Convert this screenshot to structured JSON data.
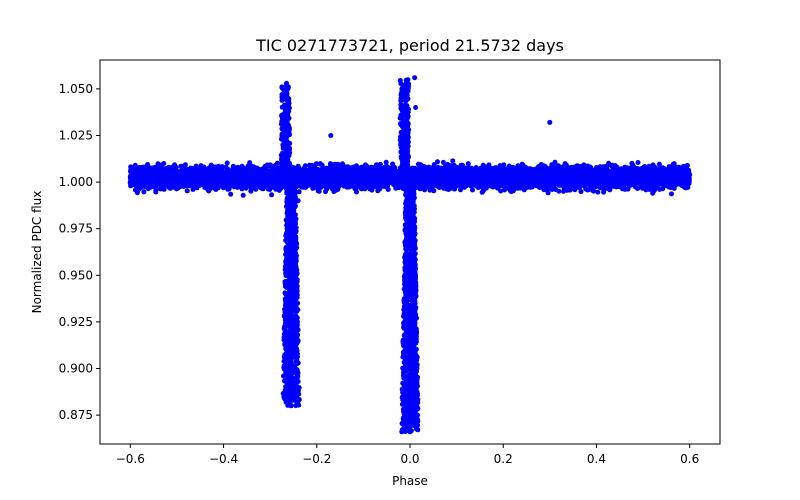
{
  "chart_data": {
    "type": "scatter",
    "title": "TIC 0271773721, period 21.5732 days",
    "xlabel": "Phase",
    "ylabel": "Normalized PDC flux",
    "xlim": [
      -0.665,
      0.665
    ],
    "ylim": [
      0.8595,
      1.0655
    ],
    "x_ticks": [
      -0.6,
      -0.4,
      -0.2,
      0.0,
      0.2,
      0.4,
      0.6
    ],
    "x_tick_labels": [
      "−0.6",
      "−0.4",
      "−0.2",
      "0.0",
      "0.2",
      "0.4",
      "0.6"
    ],
    "y_ticks": [
      0.875,
      0.9,
      0.925,
      0.95,
      0.975,
      1.0,
      1.025,
      1.05
    ],
    "y_tick_labels": [
      "0.875",
      "0.900",
      "0.925",
      "0.950",
      "0.975",
      "1.000",
      "1.025",
      "1.050"
    ],
    "grid": false,
    "color": "#0000ff",
    "series": [
      {
        "name": "PDC flux",
        "description_of_features": {
          "baseline_phase_range": [
            -0.6,
            0.6
          ],
          "baseline_flux_range": [
            0.991,
            1.014
          ],
          "primary_eclipse": {
            "phase": 0.0,
            "min_flux": 0.866,
            "max_flux": 1.056
          },
          "secondary_eclipse": {
            "phase": -0.255,
            "min_flux": 0.88,
            "max_flux": 1.053
          }
        },
        "points": [
          [
            -0.6,
            1.003
          ],
          [
            -0.55,
            0.998
          ],
          [
            -0.5,
            1.006
          ],
          [
            -0.45,
            1.001
          ],
          [
            -0.4,
            0.997
          ],
          [
            -0.35,
            1.004
          ],
          [
            -0.3,
            1.002
          ],
          [
            -0.27,
            1.0
          ],
          [
            -0.265,
            1.053
          ],
          [
            -0.262,
            1.04
          ],
          [
            -0.26,
            0.93
          ],
          [
            -0.258,
            0.9
          ],
          [
            -0.255,
            0.88
          ],
          [
            -0.252,
            0.895
          ],
          [
            -0.25,
            0.935
          ],
          [
            -0.245,
            0.97
          ],
          [
            -0.24,
            0.99
          ],
          [
            -0.2,
            1.003
          ],
          [
            -0.17,
            1.025
          ],
          [
            -0.15,
            0.999
          ],
          [
            -0.1,
            1.004
          ],
          [
            -0.05,
            0.998
          ],
          [
            -0.02,
            1.002
          ],
          [
            -0.01,
            1.03
          ],
          [
            -0.008,
            0.95
          ],
          [
            -0.005,
            0.9
          ],
          [
            -0.002,
            0.87
          ],
          [
            0.0,
            0.866
          ],
          [
            0.002,
            0.875
          ],
          [
            0.005,
            0.91
          ],
          [
            0.008,
            0.96
          ],
          [
            0.01,
            1.056
          ],
          [
            0.012,
            1.04
          ],
          [
            0.02,
            1.001
          ],
          [
            0.05,
            1.004
          ],
          [
            0.1,
            0.998
          ],
          [
            0.15,
            1.003
          ],
          [
            0.2,
            1.001
          ],
          [
            0.25,
            0.997
          ],
          [
            0.3,
            1.032
          ],
          [
            0.35,
            1.002
          ],
          [
            0.4,
            0.999
          ],
          [
            0.45,
            1.005
          ],
          [
            0.5,
            1.001
          ],
          [
            0.55,
            0.998
          ],
          [
            0.6,
            1.004
          ]
        ]
      }
    ]
  }
}
